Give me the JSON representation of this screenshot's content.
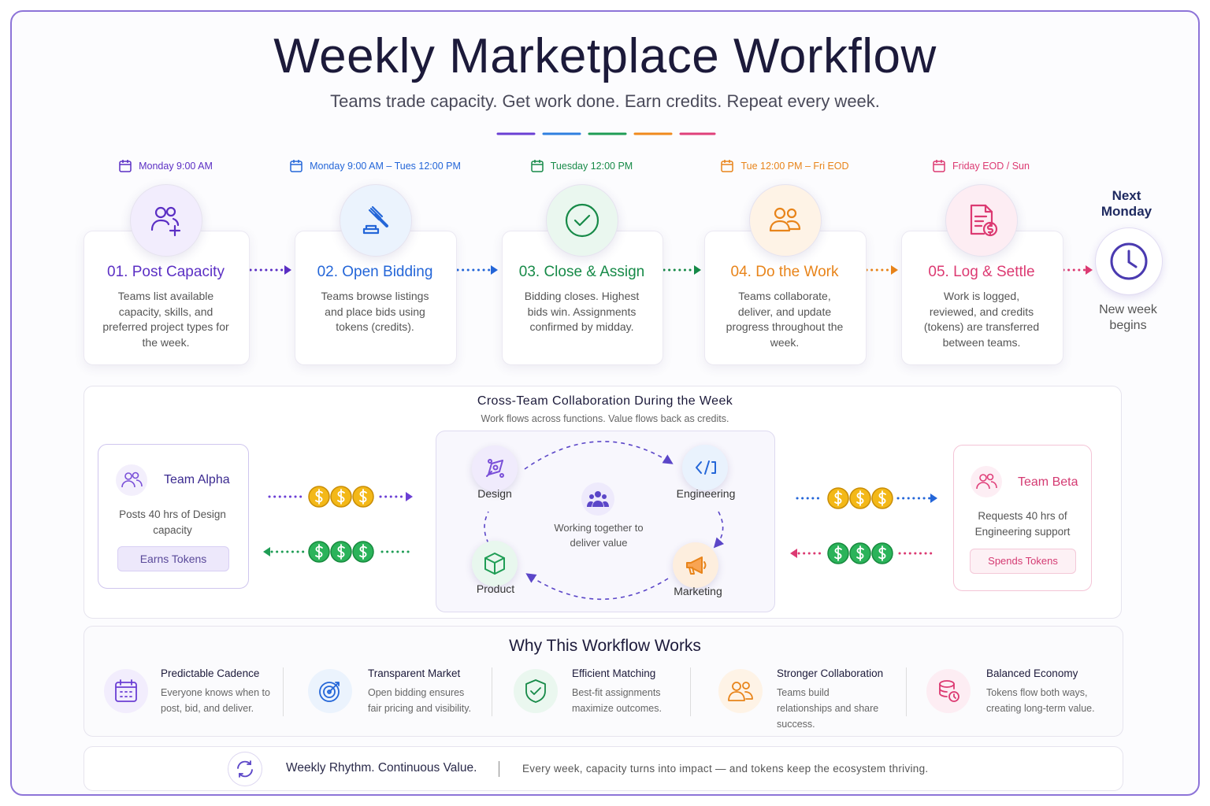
{
  "header": {
    "title": "Weekly Marketplace Workflow",
    "subtitle": "Teams trade capacity. Get work done. Earn credits. Repeat every week."
  },
  "steps": [
    {
      "time": "Monday 9:00 AM",
      "title": "01. Post Capacity",
      "description": "Teams list available capacity, skills, and preferred project types for the week."
    },
    {
      "time": "Monday 9:00 AM – Tues 12:00 PM",
      "title": "02. Open Bidding",
      "description": "Teams browse listings and place bids using tokens (credits)."
    },
    {
      "time": "Tuesday 12:00 PM",
      "title": "03. Close & Assign",
      "description": "Bidding closes. Highest bids win. Assignments confirmed by midday."
    },
    {
      "time": "Tue 12:00 PM – Fri EOD",
      "title": "04. Do the Work",
      "description": "Teams collaborate, deliver, and update progress throughout the week."
    },
    {
      "time": "Friday EOD / Sun",
      "title": "05. Log & Settle",
      "description": "Work is logged, reviewed, and credits (tokens) are transferred between teams."
    }
  ],
  "next": {
    "title": "Next Monday",
    "caption": "New week begins"
  },
  "collaboration": {
    "title": "Cross-Team Collaboration During the Week",
    "subtitle": "Work flows across functions. Value flows back as credits.",
    "team_alpha": {
      "name": "Team Alpha",
      "description": "Posts 40 hrs of Design capacity",
      "action": "Earns Tokens"
    },
    "team_beta": {
      "name": "Team Beta",
      "description": "Requests 40 hrs of Engineering support",
      "action": "Spends Tokens"
    },
    "functions": [
      "Design",
      "Engineering",
      "Product",
      "Marketing"
    ],
    "center": "Working together to deliver value"
  },
  "benefits": {
    "title": "Why This Workflow Works",
    "items": [
      {
        "title": "Predictable Cadence",
        "description": "Everyone knows when to post, bid, and deliver."
      },
      {
        "title": "Transparent Market",
        "description": "Open bidding ensures fair pricing and visibility."
      },
      {
        "title": "Efficient Matching",
        "description": "Best-fit assignments maximize outcomes."
      },
      {
        "title": "Stronger Collaboration",
        "description": "Teams build relationships and share success."
      },
      {
        "title": "Balanced Economy",
        "description": "Tokens flow both ways, creating long-term value."
      }
    ]
  },
  "footer": {
    "tagline": "Weekly Rhythm. Continuous Value.",
    "message": "Every week, capacity turns into impact — and tokens keep the ecosystem thriving."
  }
}
